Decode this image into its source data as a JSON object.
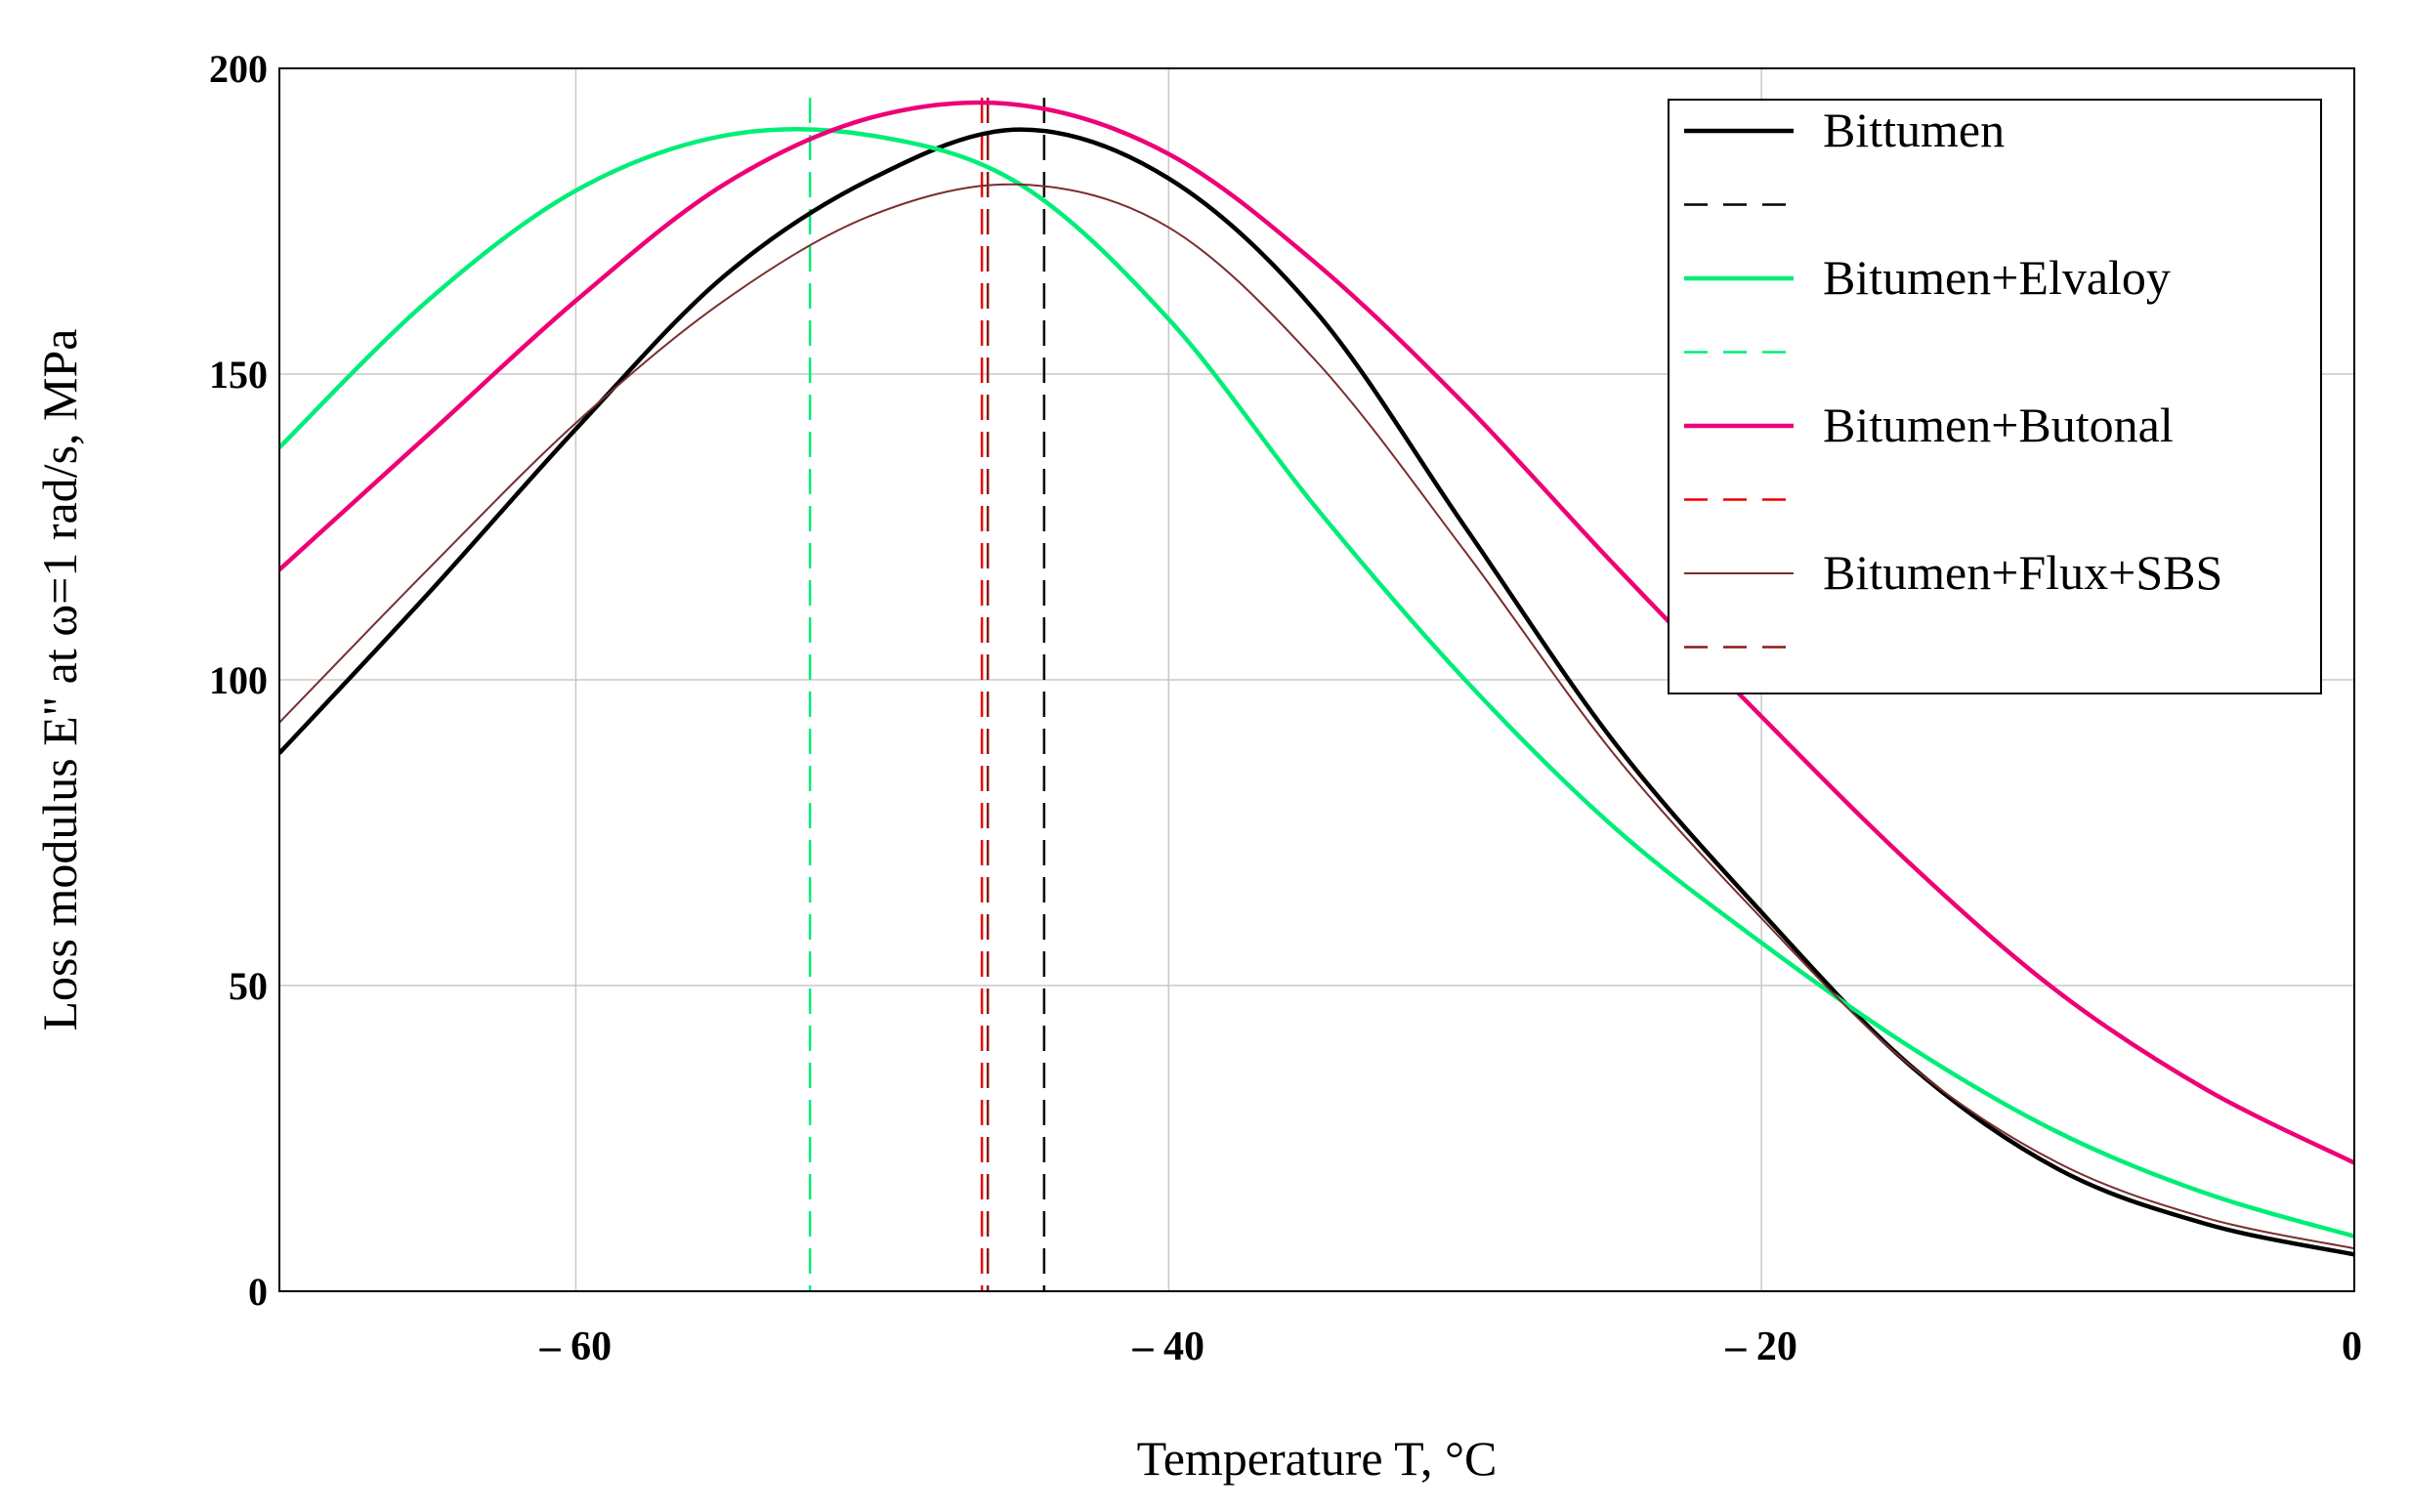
{
  "chart_data": {
    "type": "line",
    "title": "",
    "xlabel": "Temperature T, °C",
    "ylabel": "Loss modulus E\" at ω=1 rad/s, MPa",
    "xlim": [
      -70,
      0
    ],
    "ylim": [
      0,
      200
    ],
    "grid": true,
    "legend_position": "top-right",
    "x_ticks": [
      {
        "value": -60,
        "label": "– 60"
      },
      {
        "value": -40,
        "label": "– 40"
      },
      {
        "value": -20,
        "label": "– 20"
      },
      {
        "value": 0,
        "label": "0"
      }
    ],
    "y_ticks": [
      {
        "value": 0,
        "label": "0"
      },
      {
        "value": 50,
        "label": "50"
      },
      {
        "value": 100,
        "label": "100"
      },
      {
        "value": 150,
        "label": "150"
      },
      {
        "value": 200,
        "label": "200"
      }
    ],
    "series": [
      {
        "name": "Bittumen",
        "color": "#000000",
        "style": "solid",
        "width": "bold",
        "x": [
          -70,
          -65,
          -60,
          -55,
          -50,
          -45,
          -40,
          -35,
          -30,
          -25,
          -20,
          -15,
          -10,
          -5,
          0
        ],
        "y": [
          88,
          114,
          141,
          166,
          182,
          190,
          182,
          160,
          125,
          90,
          62,
          37,
          20,
          11,
          6
        ]
      },
      {
        "name": "",
        "color": "#000000",
        "style": "dashed",
        "width": "thin",
        "vline_x": -44.2
      },
      {
        "name": "Bitumen+Elvaloy",
        "color": "#00ee77",
        "style": "solid",
        "width": "bold",
        "x": [
          -70,
          -65,
          -60,
          -55,
          -50,
          -45,
          -40,
          -35,
          -30,
          -25,
          -20,
          -15,
          -10,
          -5,
          0
        ],
        "y": [
          138,
          162,
          180,
          189,
          189,
          181,
          159,
          128,
          100,
          76,
          57,
          40,
          26,
          16,
          9
        ]
      },
      {
        "name": "",
        "color": "#00ee77",
        "style": "dashed",
        "width": "thin",
        "vline_x": -52.1
      },
      {
        "name": "Bitumen+Butonal",
        "color": "#ee0077",
        "style": "solid",
        "width": "bold",
        "x": [
          -70,
          -65,
          -60,
          -55,
          -50,
          -45,
          -40,
          -35,
          -30,
          -25,
          -20,
          -15,
          -10,
          -5,
          0
        ],
        "y": [
          118,
          140,
          162,
          181,
          192,
          194,
          186,
          168,
          145,
          119,
          94,
          70,
          49,
          33,
          21
        ]
      },
      {
        "name": "",
        "color": "#ee0000",
        "style": "dashed",
        "width": "thin",
        "vline_x": -46.3
      },
      {
        "name": "Bitumen+Flux+SBS",
        "color": "#7a2e2e",
        "style": "solid",
        "width": "thin",
        "x": [
          -70,
          -65,
          -60,
          -55,
          -50,
          -45,
          -40,
          -35,
          -30,
          -25,
          -20,
          -15,
          -10,
          -5,
          0
        ],
        "y": [
          93,
          118,
          142,
          162,
          176,
          181,
          174,
          152,
          121,
          88,
          61,
          37,
          21,
          12,
          7
        ]
      },
      {
        "name": "",
        "color": "#8b1a1a",
        "style": "dashed",
        "width": "thin",
        "vline_x": -46.1
      }
    ]
  }
}
